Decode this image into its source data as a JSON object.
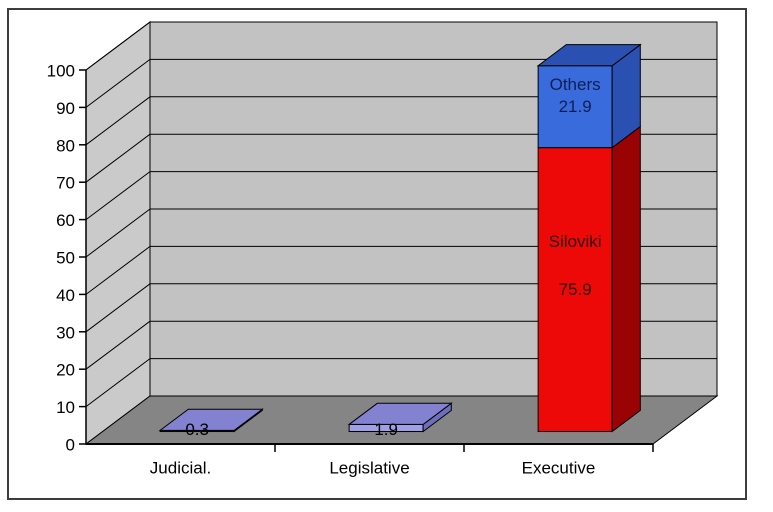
{
  "frame": {
    "background": "#ffffff",
    "border_color": "#3d3d3d",
    "border_width": 2
  },
  "chart_data": {
    "type": "bar",
    "subtype": "3d_stacked_column",
    "title": "",
    "xlabel": "",
    "ylabel": "",
    "ylim": [
      0,
      100
    ],
    "yticks": [
      0,
      10,
      20,
      30,
      40,
      50,
      60,
      70,
      80,
      90,
      100
    ],
    "grid": true,
    "legend": false,
    "walls": {
      "back_wall_color": "#c2c2c2",
      "side_wall_color": "#cacaca",
      "floor_color": "#858585",
      "gridline_color": "#000000",
      "axis_color": "#000000",
      "tick_label_color": "#000000",
      "category_label_color": "#000000"
    },
    "categories": [
      "Judicial.",
      "Legislative",
      "Executive"
    ],
    "series": [
      {
        "name": "Siloviki",
        "color": "#ee0909",
        "values": [
          null,
          null,
          75.9
        ]
      },
      {
        "name": "Others",
        "color": "#3a6bdc",
        "values": [
          null,
          null,
          21.9
        ]
      },
      {
        "name": "",
        "color": "#a0a0e6",
        "values": [
          0.3,
          1.9,
          null
        ]
      }
    ],
    "bars": [
      {
        "category": "Judicial.",
        "segments": [
          {
            "name": "",
            "value": 0.3,
            "value_label": "0.3",
            "front": "#a0a0e6",
            "top": "#8282d0",
            "side": "#6e6ec0",
            "text_color": "#000000",
            "label_position": "base"
          }
        ]
      },
      {
        "category": "Legislative",
        "segments": [
          {
            "name": "",
            "value": 1.9,
            "value_label": "1.9",
            "front": "#a0a0e6",
            "top": "#8282d0",
            "side": "#6e6ec0",
            "text_color": "#000000",
            "label_position": "base"
          }
        ]
      },
      {
        "category": "Executive",
        "segments": [
          {
            "name": "Siloviki",
            "value": 75.9,
            "value_label": "75.9",
            "front": "#ee0909",
            "top": "#b00404",
            "side": "#9a0303",
            "text_color": "#2d0707",
            "label_position": "inside"
          },
          {
            "name": "Others",
            "value": 21.9,
            "value_label": "21.9",
            "front": "#3a6bdc",
            "top": "#2a50b2",
            "side": "#2a50b2",
            "text_color": "#0f1f55",
            "label_position": "inside"
          }
        ]
      }
    ]
  }
}
